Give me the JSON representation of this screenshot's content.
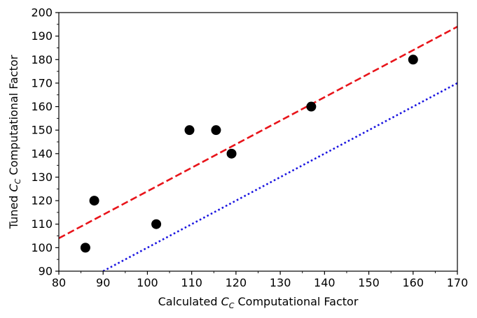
{
  "chart_data": {
    "type": "scatter",
    "title": "",
    "xlabel": {
      "prefix": "Calculated ",
      "sym": "C",
      "sub": "C",
      "suffix": " Computational Factor"
    },
    "ylabel": {
      "prefix": "Tuned ",
      "sym": "C",
      "sub": "C",
      "suffix": " Computational Factor"
    },
    "xlim": [
      80,
      170
    ],
    "ylim": [
      90,
      200
    ],
    "xticks": [
      80,
      90,
      100,
      110,
      120,
      130,
      140,
      150,
      160,
      170
    ],
    "yticks": [
      90,
      100,
      110,
      120,
      130,
      140,
      150,
      160,
      170,
      180,
      190,
      200
    ],
    "grid": false,
    "points": {
      "color": "#000000",
      "x": [
        86,
        88,
        102,
        109.5,
        115.5,
        119,
        137,
        160
      ],
      "y": [
        100,
        120,
        110,
        150,
        150,
        140,
        160,
        180
      ]
    },
    "lines": [
      {
        "style": "dashed",
        "color": "#e8141a",
        "x": [
          80,
          170
        ],
        "y": [
          104,
          194
        ]
      },
      {
        "style": "dotted",
        "color": "#1a14e0",
        "x": [
          90,
          170
        ],
        "y": [
          90,
          170
        ]
      }
    ]
  }
}
